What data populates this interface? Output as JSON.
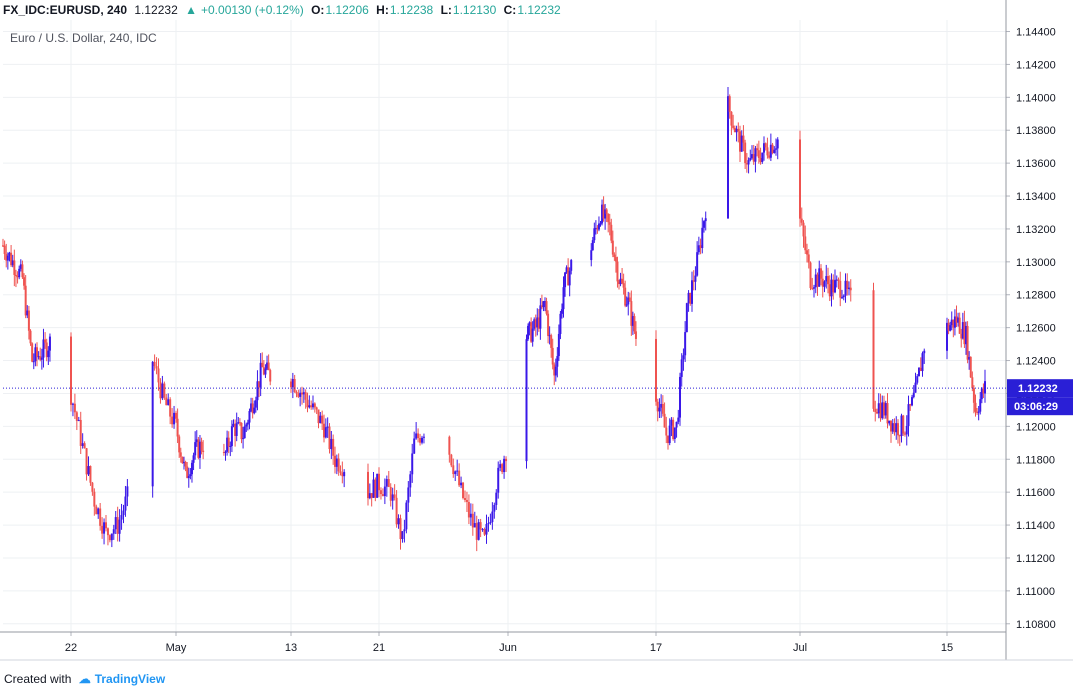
{
  "header": {
    "symbol": "FX_IDC:EURUSD, 240",
    "last": "1.12232",
    "change": "+0.00130 (+0.12%)",
    "open_label": "O:",
    "open": "1.12206",
    "high_label": "H:",
    "high": "1.12238",
    "low_label": "L:",
    "low": "1.12130",
    "close_label": "C:",
    "close": "1.12232"
  },
  "subtitle": "Euro / U.S. Dollar, 240, IDC",
  "footer": {
    "created_with": "Created with",
    "brand": "TradingView"
  },
  "colors": {
    "up": "#3a18e8",
    "down": "#ef5350",
    "grid": "#eef0f3",
    "axis_text": "#131722",
    "price_tag": "#2a1fd6"
  },
  "chart_data": {
    "type": "candlestick",
    "symbol": "EUR/USD",
    "y_ticks": [
      "1.14400",
      "1.14200",
      "1.14000",
      "1.13800",
      "1.13600",
      "1.13400",
      "1.13200",
      "1.13000",
      "1.12800",
      "1.12600",
      "1.12400",
      "1.12200",
      "1.12000",
      "1.11800",
      "1.11600",
      "1.11400",
      "1.11200",
      "1.11000",
      "1.10800"
    ],
    "ylim": [
      1.1075,
      1.1447
    ],
    "x_ticks": [
      "22",
      "May",
      "13",
      "21",
      "Jun",
      "17",
      "Jul",
      "15"
    ],
    "last_price_label": "1.12232",
    "countdown_label": "03:06:29",
    "price_path": [
      [
        "2019-04-15",
        1.131
      ],
      [
        "2019-04-17",
        1.129
      ],
      [
        "2019-04-18",
        1.124
      ],
      [
        "2019-04-19",
        1.1245
      ],
      [
        "2019-04-21",
        1.126
      ],
      [
        "2019-04-22",
        1.122
      ],
      [
        "2019-04-24",
        1.1155
      ],
      [
        "2019-04-25",
        1.1135
      ],
      [
        "2019-04-26",
        1.114
      ],
      [
        "2019-04-27",
        1.116
      ],
      [
        "2019-04-28",
        1.118
      ],
      [
        "2019-04-29",
        1.124
      ],
      [
        "2019-04-30",
        1.1215
      ],
      [
        "2019-05-01",
        1.12
      ],
      [
        "2019-05-02",
        1.117
      ],
      [
        "2019-05-03",
        1.1185
      ],
      [
        "2019-05-05",
        1.1195
      ],
      [
        "2019-05-06",
        1.118
      ],
      [
        "2019-05-07",
        1.12
      ],
      [
        "2019-05-08",
        1.1195
      ],
      [
        "2019-05-10",
        1.1235
      ],
      [
        "2019-05-11",
        1.123
      ],
      [
        "2019-05-12",
        1.124
      ],
      [
        "2019-05-13",
        1.123
      ],
      [
        "2019-05-15",
        1.121
      ],
      [
        "2019-05-16",
        1.12
      ],
      [
        "2019-05-17",
        1.118
      ],
      [
        "2019-05-18",
        1.1175
      ],
      [
        "2019-05-19",
        1.117
      ],
      [
        "2019-05-20",
        1.116
      ],
      [
        "2019-05-21",
        1.1165
      ],
      [
        "2019-05-22",
        1.116
      ],
      [
        "2019-05-23",
        1.113
      ],
      [
        "2019-05-24",
        1.119
      ],
      [
        "2019-05-25",
        1.12
      ],
      [
        "2019-05-26",
        1.119
      ],
      [
        "2019-05-27",
        1.1185
      ],
      [
        "2019-05-28",
        1.116
      ],
      [
        "2019-05-29",
        1.114
      ],
      [
        "2019-05-30",
        1.113
      ],
      [
        "2019-05-31",
        1.1165
      ],
      [
        "2019-06-01",
        1.119
      ],
      [
        "2019-06-02",
        1.121
      ],
      [
        "2019-06-03",
        1.1255
      ],
      [
        "2019-06-04",
        1.126
      ],
      [
        "2019-06-05",
        1.1275
      ],
      [
        "2019-06-06",
        1.123
      ],
      [
        "2019-06-07",
        1.1285
      ],
      [
        "2019-06-08",
        1.13
      ],
      [
        "2019-06-09",
        1.133
      ],
      [
        "2019-06-10",
        1.131
      ],
      [
        "2019-06-11",
        1.133
      ],
      [
        "2019-06-12",
        1.132
      ],
      [
        "2019-06-13",
        1.129
      ],
      [
        "2019-06-14",
        1.1275
      ],
      [
        "2019-06-15",
        1.125
      ],
      [
        "2019-06-16",
        1.1215
      ],
      [
        "2019-06-17",
        1.122
      ],
      [
        "2019-06-18",
        1.1195
      ],
      [
        "2019-06-19",
        1.12
      ],
      [
        "2019-06-20",
        1.127
      ],
      [
        "2019-06-21",
        1.13
      ],
      [
        "2019-06-22",
        1.134
      ],
      [
        "2019-06-23",
        1.138
      ],
      [
        "2019-06-24",
        1.1395
      ],
      [
        "2019-06-25",
        1.1375
      ],
      [
        "2019-06-26",
        1.136
      ],
      [
        "2019-06-27",
        1.1365
      ],
      [
        "2019-06-28",
        1.137
      ],
      [
        "2019-06-29",
        1.1375
      ],
      [
        "2019-06-30",
        1.1365
      ],
      [
        "2019-07-01",
        1.1325
      ],
      [
        "2019-07-02",
        1.129
      ],
      [
        "2019-07-03",
        1.129
      ],
      [
        "2019-07-04",
        1.1285
      ],
      [
        "2019-07-05",
        1.1285
      ],
      [
        "2019-07-06",
        1.1275
      ],
      [
        "2019-07-07",
        1.1265
      ],
      [
        "2019-07-08",
        1.1215
      ],
      [
        "2019-07-09",
        1.121
      ],
      [
        "2019-07-10",
        1.12
      ],
      [
        "2019-07-11",
        1.12
      ],
      [
        "2019-07-12",
        1.122
      ],
      [
        "2019-07-13",
        1.1255
      ],
      [
        "2019-07-14",
        1.126
      ],
      [
        "2019-07-15",
        1.126
      ],
      [
        "2019-07-16",
        1.1265
      ],
      [
        "2019-07-17",
        1.1255
      ],
      [
        "2019-07-18",
        1.121
      ],
      [
        "2019-07-19",
        1.1223
      ]
    ]
  }
}
